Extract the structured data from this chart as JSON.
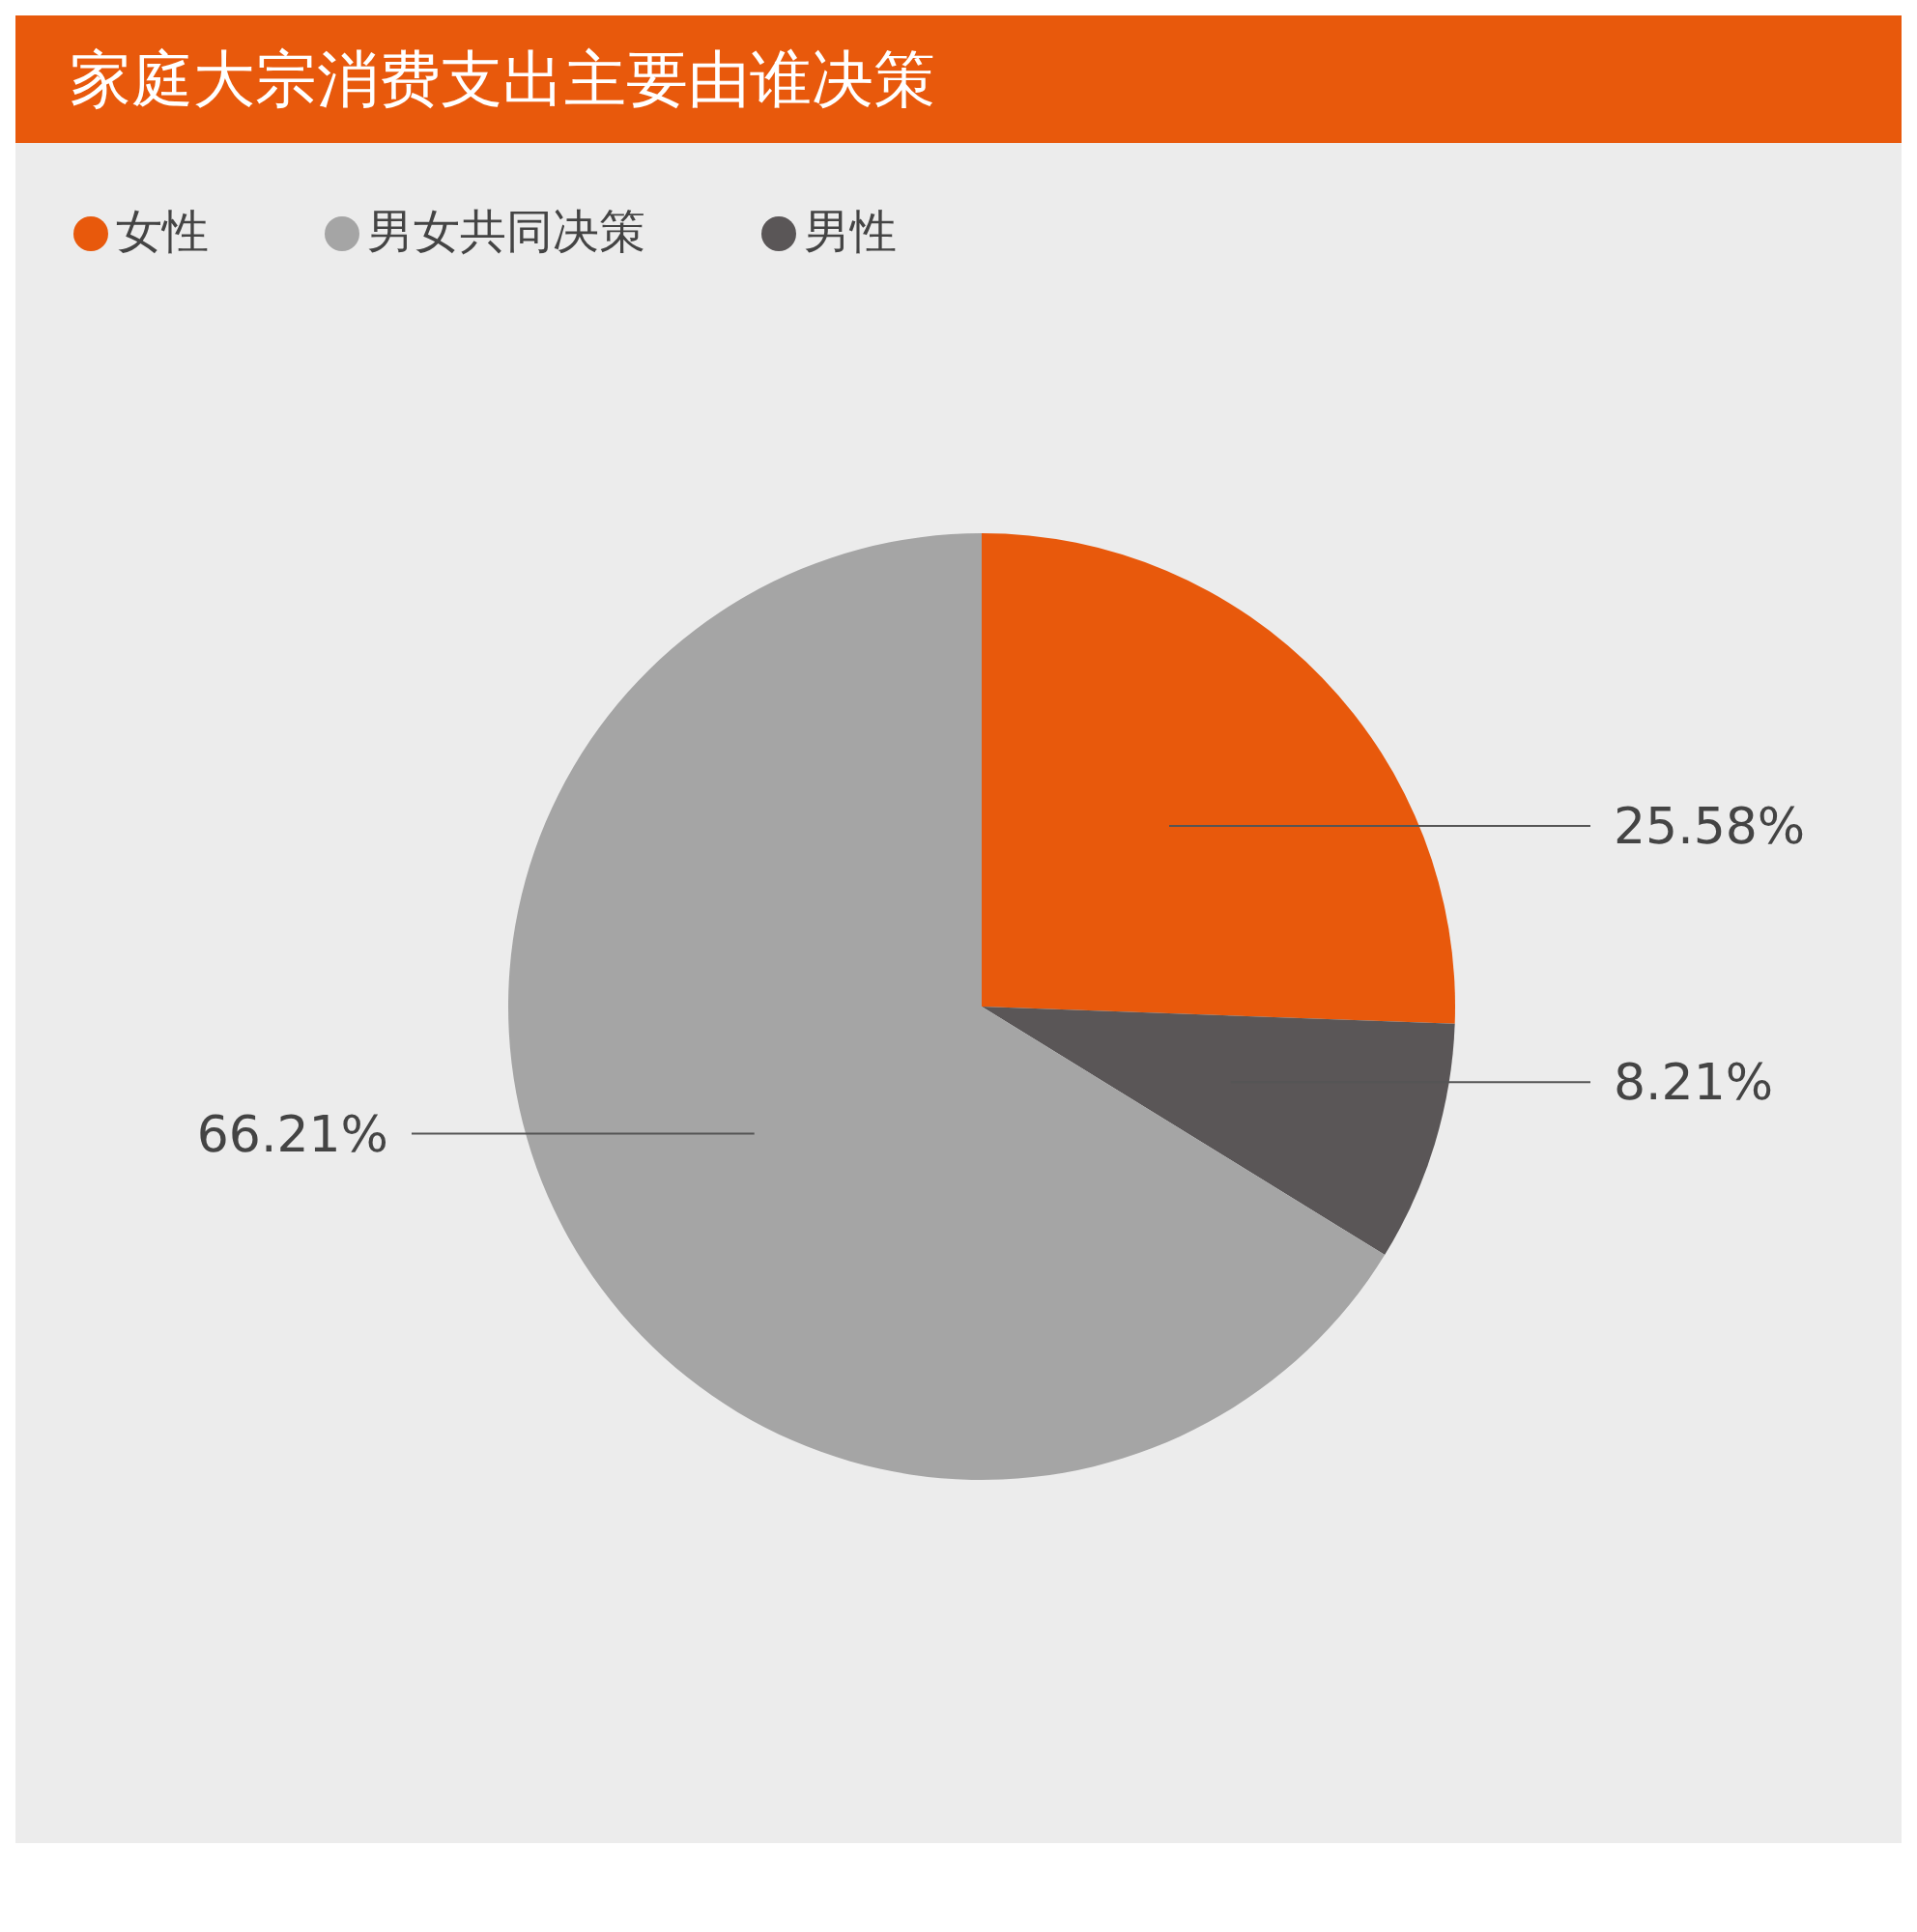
{
  "chart_data": {
    "type": "pie",
    "title": "家庭大宗消费支出主要由谁决策",
    "categories": [
      "女性",
      "男性",
      "男女共同决策"
    ],
    "values": [
      25.58,
      8.21,
      66.21
    ],
    "colors": [
      "#e8590c",
      "#5a5657",
      "#a5a5a5"
    ],
    "value_labels": [
      "25.58%",
      "8.21%",
      "66.21%"
    ],
    "legend": "top left"
  }
}
